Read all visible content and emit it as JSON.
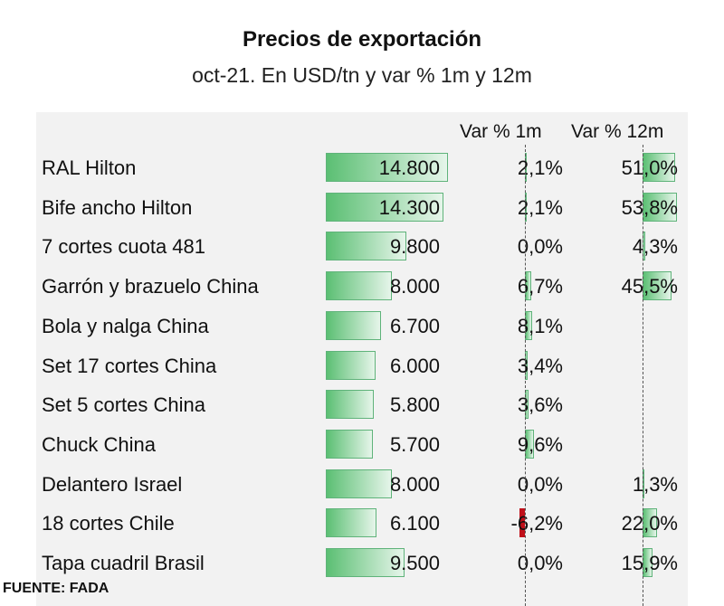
{
  "header": {
    "title": "Precios de exportación",
    "subtitle": "oct-21. En USD/tn y var % 1m y 12m"
  },
  "columns": {
    "var1m": "Var % 1m",
    "var12m": "Var % 12m"
  },
  "footer": {
    "source": "FUENTE: FADA"
  },
  "colors": {
    "positive_bar": "#5bbf73",
    "negative_bar": "#c0101a",
    "panel_background": "#f2f2f2"
  },
  "chart_data": {
    "type": "table",
    "title": "Precios de exportación",
    "subtitle": "oct-21. En USD/tn y var % 1m y 12m",
    "categories": [
      "RAL Hilton",
      "Bife ancho Hilton",
      "7 cortes cuota 481",
      "Garrón y brazuelo China",
      "Bola y nalga China",
      "Set 17 cortes China",
      "Set 5 cortes China",
      "Chuck China",
      "Delantero Israel",
      "18 cortes Chile",
      "Tapa cuadril Brasil"
    ],
    "price_labels": [
      "14.800",
      "14.300",
      "9.800",
      "8.000",
      "6.700",
      "6.000",
      "5.800",
      "5.700",
      "8.000",
      "6.100",
      "9.500"
    ],
    "price_values": [
      14800,
      14300,
      9800,
      8000,
      6700,
      6000,
      5800,
      5700,
      8000,
      6100,
      9500
    ],
    "var_1m_labels": [
      "2,1%",
      "2,1%",
      "0,0%",
      "6,7%",
      "8,1%",
      "3,4%",
      "3,6%",
      "9,6%",
      "0,0%",
      "-6,2%",
      "0,0%"
    ],
    "var_1m_values": [
      2.1,
      2.1,
      0.0,
      6.7,
      8.1,
      3.4,
      3.6,
      9.6,
      0.0,
      -6.2,
      0.0
    ],
    "var_12m_labels": [
      "51,0%",
      "53,8%",
      "4,3%",
      "45,5%",
      "",
      "",
      "",
      "",
      "1,3%",
      "22,0%",
      "15,9%"
    ],
    "var_12m_values": [
      51.0,
      53.8,
      4.3,
      45.5,
      null,
      null,
      null,
      null,
      1.3,
      22.0,
      15.9
    ]
  }
}
